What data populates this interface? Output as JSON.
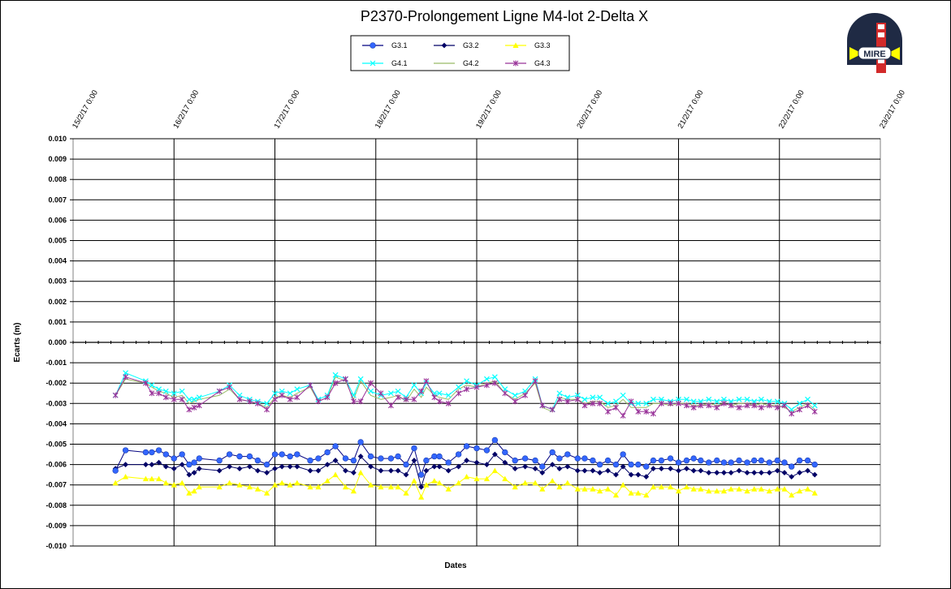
{
  "logo": {
    "text": "MIRE"
  },
  "chart_data": {
    "type": "line",
    "title": "P2370-Prolongement  Ligne  M4-lot  2-Delta  X",
    "xlabel": "Dates",
    "ylabel": "Ecarts (m)",
    "ylim": [
      -0.01,
      0.01
    ],
    "xlim": [
      "15/2/17 0:00",
      "23/2/17 0:00"
    ],
    "x_tick_labels": [
      "15/2/17 0:00",
      "16/2/17 0:00",
      "17/2/17 0:00",
      "18/2/17 0:00",
      "19/2/17 0:00",
      "20/2/17 0:00",
      "21/2/17 0:00",
      "22/2/17 0:00",
      "23/2/17 0:00"
    ],
    "y_tick_labels": [
      "0.010",
      "0.009",
      "0.008",
      "0.007",
      "0.006",
      "0.005",
      "0.004",
      "0.003",
      "0.002",
      "0.001",
      "0.000",
      "-0.001",
      "-0.002",
      "-0.003",
      "-0.004",
      "-0.005",
      "-0.006",
      "-0.007",
      "-0.008",
      "-0.009",
      "-0.010"
    ],
    "grid": true,
    "legend_position": "top-center",
    "x_values_days": [
      0.42,
      0.52,
      0.72,
      0.78,
      0.85,
      0.92,
      1.0,
      1.08,
      1.15,
      1.2,
      1.25,
      1.45,
      1.55,
      1.65,
      1.75,
      1.83,
      1.92,
      2.0,
      2.07,
      2.15,
      2.22,
      2.35,
      2.43,
      2.52,
      2.6,
      2.7,
      2.78,
      2.85,
      2.95,
      3.05,
      3.15,
      3.22,
      3.3,
      3.38,
      3.45,
      3.5,
      3.58,
      3.63,
      3.72,
      3.82,
      3.9,
      4.0,
      4.1,
      4.18,
      4.28,
      4.38,
      4.48,
      4.58,
      4.65,
      4.75,
      4.82,
      4.9,
      5.0,
      5.07,
      5.15,
      5.22,
      5.3,
      5.38,
      5.45,
      5.53,
      5.6,
      5.68,
      5.75,
      5.83,
      5.92,
      6.0,
      6.08,
      6.15,
      6.22,
      6.3,
      6.38,
      6.45,
      6.52,
      6.6,
      6.68,
      6.75,
      6.82,
      6.9,
      6.98,
      7.05,
      7.12,
      7.2,
      7.28,
      7.35
    ],
    "series": [
      {
        "name": "G3.1",
        "color": "#3366ff",
        "line_color": "#000080",
        "marker": "circle",
        "values": [
          -0.0063,
          -0.0053,
          -0.0054,
          -0.0054,
          -0.0053,
          -0.0055,
          -0.0057,
          -0.0055,
          -0.006,
          -0.0059,
          -0.0057,
          -0.0058,
          -0.0055,
          -0.0056,
          -0.0056,
          -0.0058,
          -0.006,
          -0.0055,
          -0.0055,
          -0.0056,
          -0.0055,
          -0.0058,
          -0.0057,
          -0.0054,
          -0.0051,
          -0.0057,
          -0.0058,
          -0.0049,
          -0.0056,
          -0.0057,
          -0.0057,
          -0.0056,
          -0.006,
          -0.0052,
          -0.0065,
          -0.0058,
          -0.0056,
          -0.0056,
          -0.0059,
          -0.0055,
          -0.0051,
          -0.0052,
          -0.0053,
          -0.0048,
          -0.0054,
          -0.0058,
          -0.0057,
          -0.0058,
          -0.0061,
          -0.0054,
          -0.0057,
          -0.0055,
          -0.0057,
          -0.0057,
          -0.0058,
          -0.006,
          -0.0058,
          -0.006,
          -0.0055,
          -0.006,
          -0.006,
          -0.0061,
          -0.0058,
          -0.0058,
          -0.0057,
          -0.0059,
          -0.0058,
          -0.0057,
          -0.0058,
          -0.0059,
          -0.0058,
          -0.0059,
          -0.0059,
          -0.0058,
          -0.0059,
          -0.0058,
          -0.0058,
          -0.0059,
          -0.0058,
          -0.0059,
          -0.0061,
          -0.0058,
          -0.0058,
          -0.006
        ]
      },
      {
        "name": "G3.2",
        "color": "#000066",
        "line_color": "#000066",
        "marker": "diamond",
        "values": [
          -0.0062,
          -0.006,
          -0.006,
          -0.006,
          -0.0059,
          -0.0061,
          -0.0062,
          -0.006,
          -0.0065,
          -0.0064,
          -0.0062,
          -0.0063,
          -0.0061,
          -0.0062,
          -0.0061,
          -0.0063,
          -0.0064,
          -0.0062,
          -0.0061,
          -0.0061,
          -0.0061,
          -0.0063,
          -0.0063,
          -0.006,
          -0.0058,
          -0.0063,
          -0.0064,
          -0.0056,
          -0.0061,
          -0.0063,
          -0.0063,
          -0.0063,
          -0.0065,
          -0.0058,
          -0.0071,
          -0.0063,
          -0.0061,
          -0.0061,
          -0.0063,
          -0.0061,
          -0.0058,
          -0.0059,
          -0.006,
          -0.0055,
          -0.0059,
          -0.0062,
          -0.0061,
          -0.0062,
          -0.0064,
          -0.006,
          -0.0062,
          -0.0061,
          -0.0063,
          -0.0063,
          -0.0063,
          -0.0064,
          -0.0063,
          -0.0065,
          -0.0061,
          -0.0065,
          -0.0065,
          -0.0066,
          -0.0062,
          -0.0062,
          -0.0062,
          -0.0063,
          -0.0062,
          -0.0063,
          -0.0063,
          -0.0064,
          -0.0064,
          -0.0064,
          -0.0064,
          -0.0063,
          -0.0064,
          -0.0064,
          -0.0064,
          -0.0064,
          -0.0063,
          -0.0064,
          -0.0066,
          -0.0064,
          -0.0063,
          -0.0065
        ]
      },
      {
        "name": "G3.3",
        "color": "#ffff00",
        "line_color": "#ffff00",
        "marker": "triangle",
        "values": [
          -0.0069,
          -0.0066,
          -0.0067,
          -0.0067,
          -0.0067,
          -0.0069,
          -0.007,
          -0.0069,
          -0.0074,
          -0.0073,
          -0.0071,
          -0.0071,
          -0.0069,
          -0.007,
          -0.0071,
          -0.0072,
          -0.0074,
          -0.007,
          -0.0069,
          -0.007,
          -0.0069,
          -0.0071,
          -0.0071,
          -0.0068,
          -0.0065,
          -0.0071,
          -0.0073,
          -0.0064,
          -0.007,
          -0.0071,
          -0.0071,
          -0.0071,
          -0.0074,
          -0.0068,
          -0.0076,
          -0.007,
          -0.0068,
          -0.0069,
          -0.0072,
          -0.0069,
          -0.0066,
          -0.0067,
          -0.0067,
          -0.0063,
          -0.0067,
          -0.0071,
          -0.0069,
          -0.0069,
          -0.0072,
          -0.0068,
          -0.0071,
          -0.0069,
          -0.0072,
          -0.0072,
          -0.0072,
          -0.0073,
          -0.0072,
          -0.0075,
          -0.007,
          -0.0074,
          -0.0074,
          -0.0075,
          -0.0071,
          -0.0071,
          -0.0071,
          -0.0073,
          -0.0071,
          -0.0072,
          -0.0072,
          -0.0073,
          -0.0073,
          -0.0073,
          -0.0072,
          -0.0072,
          -0.0073,
          -0.0072,
          -0.0072,
          -0.0073,
          -0.0072,
          -0.0072,
          -0.0075,
          -0.0073,
          -0.0072,
          -0.0074
        ]
      },
      {
        "name": "G4.1",
        "color": "#00ffff",
        "line_color": "#00ffff",
        "marker": "x",
        "values": [
          -0.0026,
          -0.0015,
          -0.0019,
          -0.0021,
          -0.0023,
          -0.0024,
          -0.0025,
          -0.0024,
          -0.0028,
          -0.0028,
          -0.0027,
          -0.0024,
          -0.0021,
          -0.0026,
          -0.0028,
          -0.0029,
          -0.003,
          -0.0025,
          -0.0024,
          -0.0025,
          -0.0023,
          -0.0021,
          -0.0028,
          -0.0026,
          -0.0016,
          -0.0018,
          -0.0026,
          -0.0018,
          -0.0024,
          -0.0026,
          -0.0025,
          -0.0024,
          -0.0027,
          -0.0021,
          -0.0025,
          -0.002,
          -0.0025,
          -0.0025,
          -0.0026,
          -0.0022,
          -0.0019,
          -0.0021,
          -0.0018,
          -0.0017,
          -0.0023,
          -0.0026,
          -0.0024,
          -0.0018,
          -0.0031,
          -0.0033,
          -0.0025,
          -0.0027,
          -0.0026,
          -0.0028,
          -0.0027,
          -0.0027,
          -0.003,
          -0.0029,
          -0.0026,
          -0.003,
          -0.003,
          -0.003,
          -0.0028,
          -0.0028,
          -0.0029,
          -0.0028,
          -0.0028,
          -0.0029,
          -0.0029,
          -0.0028,
          -0.0029,
          -0.0028,
          -0.0029,
          -0.0028,
          -0.0028,
          -0.0029,
          -0.0028,
          -0.0029,
          -0.0029,
          -0.003,
          -0.0033,
          -0.003,
          -0.0028,
          -0.0031
        ]
      },
      {
        "name": "G4.2",
        "color": "#99bb66",
        "line_color": "#99bb66",
        "marker": "none",
        "values": [
          -0.0026,
          -0.0018,
          -0.002,
          -0.0022,
          -0.0024,
          -0.0025,
          -0.0027,
          -0.0026,
          -0.003,
          -0.0029,
          -0.0028,
          -0.0026,
          -0.0023,
          -0.0028,
          -0.0029,
          -0.003,
          -0.0032,
          -0.0027,
          -0.0026,
          -0.0027,
          -0.0025,
          -0.0022,
          -0.0029,
          -0.0027,
          -0.0017,
          -0.0019,
          -0.0028,
          -0.0019,
          -0.0026,
          -0.0028,
          -0.0027,
          -0.0026,
          -0.0029,
          -0.0023,
          -0.0027,
          -0.0022,
          -0.0026,
          -0.0027,
          -0.0028,
          -0.0023,
          -0.0021,
          -0.0022,
          -0.002,
          -0.0019,
          -0.0025,
          -0.0028,
          -0.0025,
          -0.002,
          -0.0032,
          -0.0034,
          -0.0027,
          -0.0028,
          -0.0028,
          -0.003,
          -0.0029,
          -0.0029,
          -0.0032,
          -0.0031,
          -0.0028,
          -0.0032,
          -0.0032,
          -0.0032,
          -0.003,
          -0.003,
          -0.0031,
          -0.003,
          -0.003,
          -0.0031,
          -0.0031,
          -0.003,
          -0.0031,
          -0.003,
          -0.0031,
          -0.003,
          -0.003,
          -0.0031,
          -0.003,
          -0.0031,
          -0.0031,
          -0.0032,
          -0.0034,
          -0.0032,
          -0.003,
          -0.0033
        ]
      },
      {
        "name": "G4.3",
        "color": "#993399",
        "line_color": "#993399",
        "marker": "star",
        "values": [
          -0.0026,
          -0.0017,
          -0.002,
          -0.0025,
          -0.0025,
          -0.0027,
          -0.0028,
          -0.0028,
          -0.0033,
          -0.0032,
          -0.0031,
          -0.0024,
          -0.0022,
          -0.0028,
          -0.0029,
          -0.003,
          -0.0033,
          -0.0028,
          -0.0026,
          -0.0028,
          -0.0027,
          -0.0021,
          -0.0029,
          -0.0027,
          -0.002,
          -0.0018,
          -0.0029,
          -0.0029,
          -0.002,
          -0.0025,
          -0.0031,
          -0.0027,
          -0.0028,
          -0.0028,
          -0.0024,
          -0.0019,
          -0.0027,
          -0.0029,
          -0.003,
          -0.0025,
          -0.0023,
          -0.0022,
          -0.0021,
          -0.002,
          -0.0025,
          -0.0029,
          -0.0026,
          -0.0019,
          -0.0031,
          -0.0033,
          -0.0028,
          -0.0029,
          -0.0028,
          -0.0031,
          -0.003,
          -0.003,
          -0.0034,
          -0.0032,
          -0.0036,
          -0.0029,
          -0.0034,
          -0.0034,
          -0.0035,
          -0.003,
          -0.003,
          -0.003,
          -0.0031,
          -0.0032,
          -0.0031,
          -0.0031,
          -0.0032,
          -0.003,
          -0.0031,
          -0.0032,
          -0.0031,
          -0.0031,
          -0.0032,
          -0.0031,
          -0.0032,
          -0.0031,
          -0.0035,
          -0.0033,
          -0.0031,
          -0.0034
        ]
      }
    ]
  }
}
